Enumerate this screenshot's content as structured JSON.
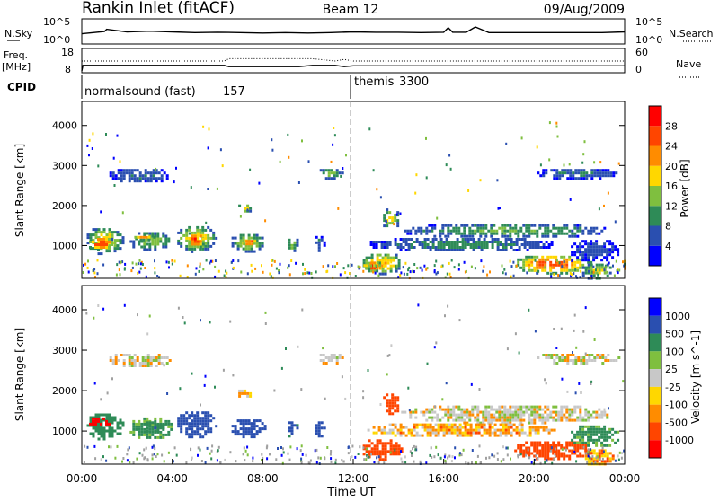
{
  "header": {
    "title": "Rankin Inlet (fitACF)",
    "beam": "Beam 12",
    "date": "09/Aug/2009"
  },
  "colors": {
    "power": [
      "#0000ff",
      "#2a4fb0",
      "#2e8b57",
      "#7fbf3f",
      "#ffd700",
      "#ff8c00",
      "#ff4500",
      "#ff0000"
    ],
    "velocity": [
      "#ff0000",
      "#ff4500",
      "#ff8c00",
      "#ffd700",
      "#c8c8c8",
      "#7fbf3f",
      "#2e8b57",
      "#2a4fb0",
      "#0000ff"
    ],
    "ground": "#a0a0a0"
  },
  "chart_data": [
    {
      "type": "line",
      "panel": "noise",
      "left_label": "N.Sky",
      "right_label": "N.Search",
      "left_ticks": [
        "10^5",
        "10^0"
      ],
      "right_ticks": [
        "10^5",
        "10^0"
      ],
      "series": [
        {
          "name": "N.Sky",
          "style": "solid",
          "x": [
            0,
            1,
            1.1,
            2,
            3,
            4,
            5,
            6,
            7,
            8,
            9,
            10,
            11,
            12,
            13,
            14,
            15,
            16,
            16.2,
            16.4,
            17,
            17.4,
            18,
            19,
            20,
            21,
            22,
            23,
            24
          ],
          "y": [
            2,
            2.6,
            3.2,
            2.5,
            2.7,
            2.5,
            2.3,
            2.4,
            2.3,
            2.2,
            2.3,
            2.2,
            2.3,
            2.5,
            2.4,
            2.4,
            2.3,
            2.4,
            3.6,
            2.4,
            2.4,
            3.8,
            2.3,
            2.3,
            2.3,
            2.3,
            2.3,
            2.3,
            2.5
          ]
        }
      ]
    },
    {
      "type": "line",
      "panel": "freq_nave",
      "left_label": "Freq.",
      "left_unit": "[MHz]",
      "right_label": "Nave",
      "left_ticks": [
        "18",
        "8"
      ],
      "right_ticks": [
        "60",
        "0"
      ],
      "series": [
        {
          "name": "Freq.",
          "style": "solid",
          "x": [
            0,
            0.05,
            6.3,
            6.5,
            9.6,
            10.2,
            11.2,
            11.6,
            12,
            24
          ],
          "y": [
            8,
            10.8,
            10.8,
            10.2,
            10.2,
            10.8,
            10.8,
            10.2,
            10.6,
            10.6
          ]
        },
        {
          "name": "Nave",
          "style": "dotted",
          "x": [
            0,
            6.3,
            6.5,
            10.2,
            11.2,
            11.6,
            12,
            24
          ],
          "y": [
            30,
            30,
            37,
            37,
            30,
            35,
            30,
            30
          ]
        }
      ]
    },
    {
      "type": "table",
      "panel": "cpid",
      "label": "CPID",
      "segments": [
        {
          "name": "normalsound (fast)",
          "id": "157",
          "x_start": 0,
          "x_end": 11.9
        },
        {
          "name": "themis",
          "id": "3300",
          "x_start": 11.9,
          "x_end": 24
        }
      ]
    },
    {
      "type": "heatmap",
      "panel": "power",
      "ylabel": "Slant Range [km]",
      "yticks": [
        1000,
        2000,
        3000,
        4000
      ],
      "ylim": [
        180,
        4600
      ],
      "xlim": [
        0,
        24
      ],
      "colorbar": {
        "label": "Power [dB]",
        "ticks": [
          "4",
          "8",
          "12",
          "16",
          "20",
          "24",
          "28"
        ],
        "range": [
          0,
          32
        ]
      },
      "patches": [
        {
          "t": [
            0.1,
            1.8
          ],
          "r": [
            800,
            1500
          ],
          "v": 18
        },
        {
          "t": [
            0.2,
            1.4
          ],
          "r": [
            900,
            1250
          ],
          "v": 28
        },
        {
          "t": [
            2.0,
            4.0
          ],
          "r": [
            900,
            1400
          ],
          "v": 14
        },
        {
          "t": [
            2.2,
            3.2
          ],
          "r": [
            1150,
            1300
          ],
          "v": 24
        },
        {
          "t": [
            4.1,
            5.9
          ],
          "r": [
            850,
            1550
          ],
          "v": 18
        },
        {
          "t": [
            4.6,
            5.4
          ],
          "r": [
            950,
            1400
          ],
          "v": 28
        },
        {
          "t": [
            6.5,
            8.1
          ],
          "r": [
            850,
            1350
          ],
          "v": 16
        },
        {
          "t": [
            7.0,
            7.8
          ],
          "r": [
            1000,
            1200
          ],
          "v": 26
        },
        {
          "t": [
            9.0,
            9.5
          ],
          "r": [
            850,
            1300
          ],
          "v": 14
        },
        {
          "t": [
            10.2,
            10.7
          ],
          "r": [
            850,
            1300
          ],
          "v": 8
        },
        {
          "t": [
            1.1,
            3.9
          ],
          "r": [
            2600,
            3000
          ],
          "v": 8
        },
        {
          "t": [
            6.8,
            7.5
          ],
          "r": [
            1850,
            2100
          ],
          "v": 18
        },
        {
          "t": [
            10.4,
            11.5
          ],
          "r": [
            2700,
            3000
          ],
          "v": 12
        },
        {
          "t": [
            12.3,
            14.2
          ],
          "r": [
            300,
            850
          ],
          "v": 20
        },
        {
          "t": [
            12.4,
            13.2
          ],
          "r": [
            350,
            650
          ],
          "v": 28
        },
        {
          "t": [
            13.2,
            14.0
          ],
          "r": [
            1400,
            2000
          ],
          "v": 18
        },
        {
          "t": [
            14.0,
            23.5
          ],
          "r": [
            1200,
            1600
          ],
          "v": 12
        },
        {
          "t": [
            12.5,
            21.0
          ],
          "r": [
            850,
            1250
          ],
          "v": 10
        },
        {
          "t": [
            19.0,
            22.5
          ],
          "r": [
            300,
            800
          ],
          "v": 26
        },
        {
          "t": [
            21.5,
            23.8
          ],
          "r": [
            600,
            1200
          ],
          "v": 6
        },
        {
          "t": [
            20.0,
            23.8
          ],
          "r": [
            2700,
            3000
          ],
          "v": 8
        },
        {
          "t": [
            22.0,
            23.5
          ],
          "r": [
            150,
            600
          ],
          "v": 16
        }
      ]
    },
    {
      "type": "heatmap",
      "panel": "velocity",
      "ylabel": "Slant Range [km]",
      "xlabel": "Time UT",
      "xticks": [
        "00:00",
        "04:00",
        "08:00",
        "12:00",
        "16:00",
        "20:00",
        "00:00"
      ],
      "yticks": [
        1000,
        2000,
        3000,
        4000
      ],
      "ylim": [
        180,
        4600
      ],
      "xlim": [
        0,
        24
      ],
      "colorbar": {
        "label": "Velocity [m s^-1]",
        "ticks": [
          "1000",
          "500",
          "100",
          "25",
          "-25",
          "-100",
          "-500",
          "-1000"
        ],
        "range": [
          -1200,
          1200
        ]
      },
      "patches": [
        {
          "t": [
            0.1,
            1.8
          ],
          "r": [
            800,
            1500
          ],
          "v": 300
        },
        {
          "t": [
            0.2,
            1.2
          ],
          "r": [
            1100,
            1400
          ],
          "v": -700
        },
        {
          "t": [
            2.0,
            4.0
          ],
          "r": [
            800,
            1400
          ],
          "v": 150
        },
        {
          "t": [
            2.6,
            3.6
          ],
          "r": [
            1000,
            1300
          ],
          "v": 500
        },
        {
          "t": [
            4.1,
            5.9
          ],
          "r": [
            850,
            1550
          ],
          "v": 900
        },
        {
          "t": [
            6.5,
            8.1
          ],
          "r": [
            850,
            1350
          ],
          "v": 800
        },
        {
          "t": [
            9.0,
            9.5
          ],
          "r": [
            850,
            1300
          ],
          "v": 700
        },
        {
          "t": [
            10.2,
            10.7
          ],
          "r": [
            850,
            1300
          ],
          "v": 800
        },
        {
          "t": [
            1.1,
            3.9
          ],
          "r": [
            2600,
            3000
          ],
          "v": 0
        },
        {
          "t": [
            6.8,
            7.5
          ],
          "r": [
            1850,
            2100
          ],
          "v": -50
        },
        {
          "t": [
            10.4,
            11.5
          ],
          "r": [
            2700,
            3000
          ],
          "v": 0
        },
        {
          "t": [
            12.3,
            14.2
          ],
          "r": [
            300,
            850
          ],
          "v": -300
        },
        {
          "t": [
            13.2,
            14.0
          ],
          "r": [
            1400,
            2000
          ],
          "v": -300
        },
        {
          "t": [
            14.0,
            23.5
          ],
          "r": [
            1200,
            1700
          ],
          "v": 0
        },
        {
          "t": [
            12.5,
            21.0
          ],
          "r": [
            850,
            1250
          ],
          "v": -60
        },
        {
          "t": [
            19.0,
            22.5
          ],
          "r": [
            300,
            800
          ],
          "v": -400
        },
        {
          "t": [
            21.5,
            23.8
          ],
          "r": [
            600,
            1200
          ],
          "v": 150
        },
        {
          "t": [
            20.0,
            23.8
          ],
          "r": [
            2700,
            3000
          ],
          "v": 0
        },
        {
          "t": [
            22.0,
            23.5
          ],
          "r": [
            150,
            600
          ],
          "v": -100
        }
      ]
    }
  ]
}
